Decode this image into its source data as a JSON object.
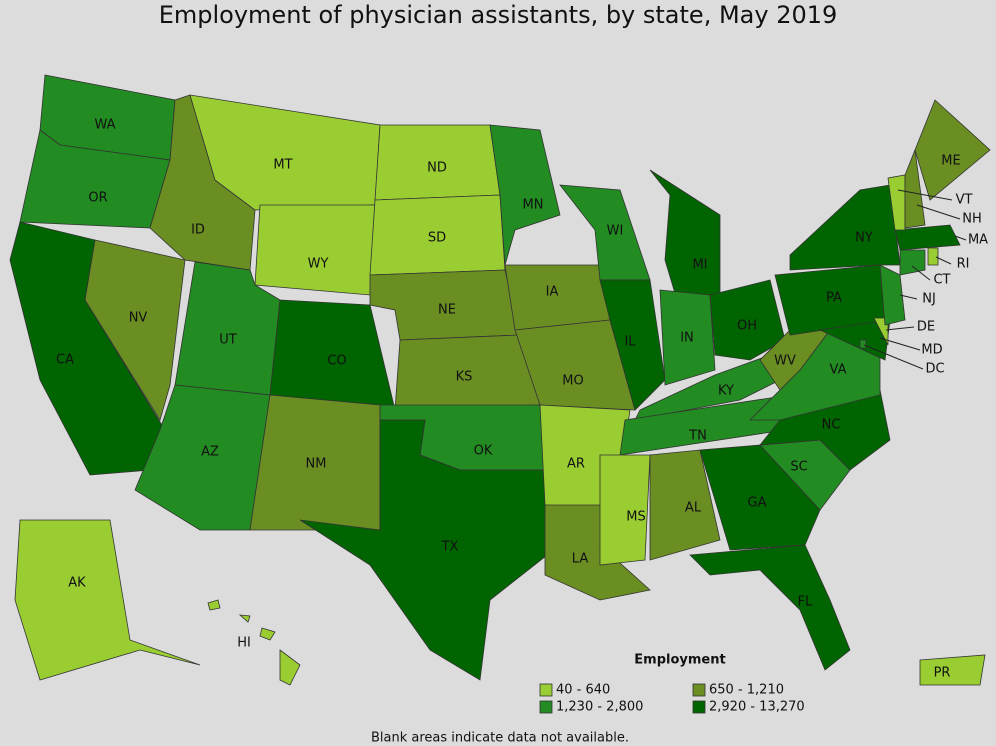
{
  "title": "Employment of physician assistants, by state, May 2019",
  "legend": {
    "title": "Employment",
    "items": [
      {
        "label": "40 - 640",
        "color": "#9acd32"
      },
      {
        "label": "650 - 1,210",
        "color": "#6b8e23"
      },
      {
        "label": "1,230 - 2,800",
        "color": "#228b22"
      },
      {
        "label": "2,920 - 13,270",
        "color": "#006400"
      }
    ]
  },
  "footnote": "Blank areas indicate data not available.",
  "states": [
    {
      "label": "WA",
      "color": "#228b22"
    },
    {
      "label": "OR",
      "color": "#228b22"
    },
    {
      "label": "CA",
      "color": "#006400"
    },
    {
      "label": "NV",
      "color": "#6b8e23"
    },
    {
      "label": "ID",
      "color": "#6b8e23"
    },
    {
      "label": "MT",
      "color": "#9acd32"
    },
    {
      "label": "WY",
      "color": "#9acd32"
    },
    {
      "label": "UT",
      "color": "#228b22"
    },
    {
      "label": "AZ",
      "color": "#228b22"
    },
    {
      "label": "CO",
      "color": "#006400"
    },
    {
      "label": "NM",
      "color": "#6b8e23"
    },
    {
      "label": "ND",
      "color": "#9acd32"
    },
    {
      "label": "SD",
      "color": "#9acd32"
    },
    {
      "label": "NE",
      "color": "#6b8e23"
    },
    {
      "label": "KS",
      "color": "#6b8e23"
    },
    {
      "label": "OK",
      "color": "#228b22"
    },
    {
      "label": "TX",
      "color": "#006400"
    },
    {
      "label": "MN",
      "color": "#228b22"
    },
    {
      "label": "IA",
      "color": "#6b8e23"
    },
    {
      "label": "MO",
      "color": "#6b8e23"
    },
    {
      "label": "AR",
      "color": "#9acd32"
    },
    {
      "label": "LA",
      "color": "#6b8e23"
    },
    {
      "label": "WI",
      "color": "#228b22"
    },
    {
      "label": "IL",
      "color": "#006400"
    },
    {
      "label": "MI",
      "color": "#006400"
    },
    {
      "label": "IN",
      "color": "#228b22"
    },
    {
      "label": "OH",
      "color": "#006400"
    },
    {
      "label": "KY",
      "color": "#228b22"
    },
    {
      "label": "TN",
      "color": "#228b22"
    },
    {
      "label": "MS",
      "color": "#9acd32"
    },
    {
      "label": "AL",
      "color": "#6b8e23"
    },
    {
      "label": "GA",
      "color": "#006400"
    },
    {
      "label": "FL",
      "color": "#006400"
    },
    {
      "label": "SC",
      "color": "#228b22"
    },
    {
      "label": "NC",
      "color": "#006400"
    },
    {
      "label": "VA",
      "color": "#228b22"
    },
    {
      "label": "WV",
      "color": "#6b8e23"
    },
    {
      "label": "PA",
      "color": "#006400"
    },
    {
      "label": "NY",
      "color": "#006400"
    },
    {
      "label": "MD",
      "color": "#006400"
    },
    {
      "label": "DE",
      "color": "#9acd32"
    },
    {
      "label": "NJ",
      "color": "#228b22"
    },
    {
      "label": "CT",
      "color": "#228b22"
    },
    {
      "label": "RI",
      "color": "#9acd32"
    },
    {
      "label": "MA",
      "color": "#006400"
    },
    {
      "label": "VT",
      "color": "#9acd32"
    },
    {
      "label": "NH",
      "color": "#6b8e23"
    },
    {
      "label": "ME",
      "color": "#6b8e23"
    },
    {
      "label": "DC",
      "color": "#228b22"
    },
    {
      "label": "AK",
      "color": "#9acd32"
    },
    {
      "label": "HI",
      "color": "#9acd32"
    },
    {
      "label": "PR",
      "color": "#9acd32"
    }
  ]
}
